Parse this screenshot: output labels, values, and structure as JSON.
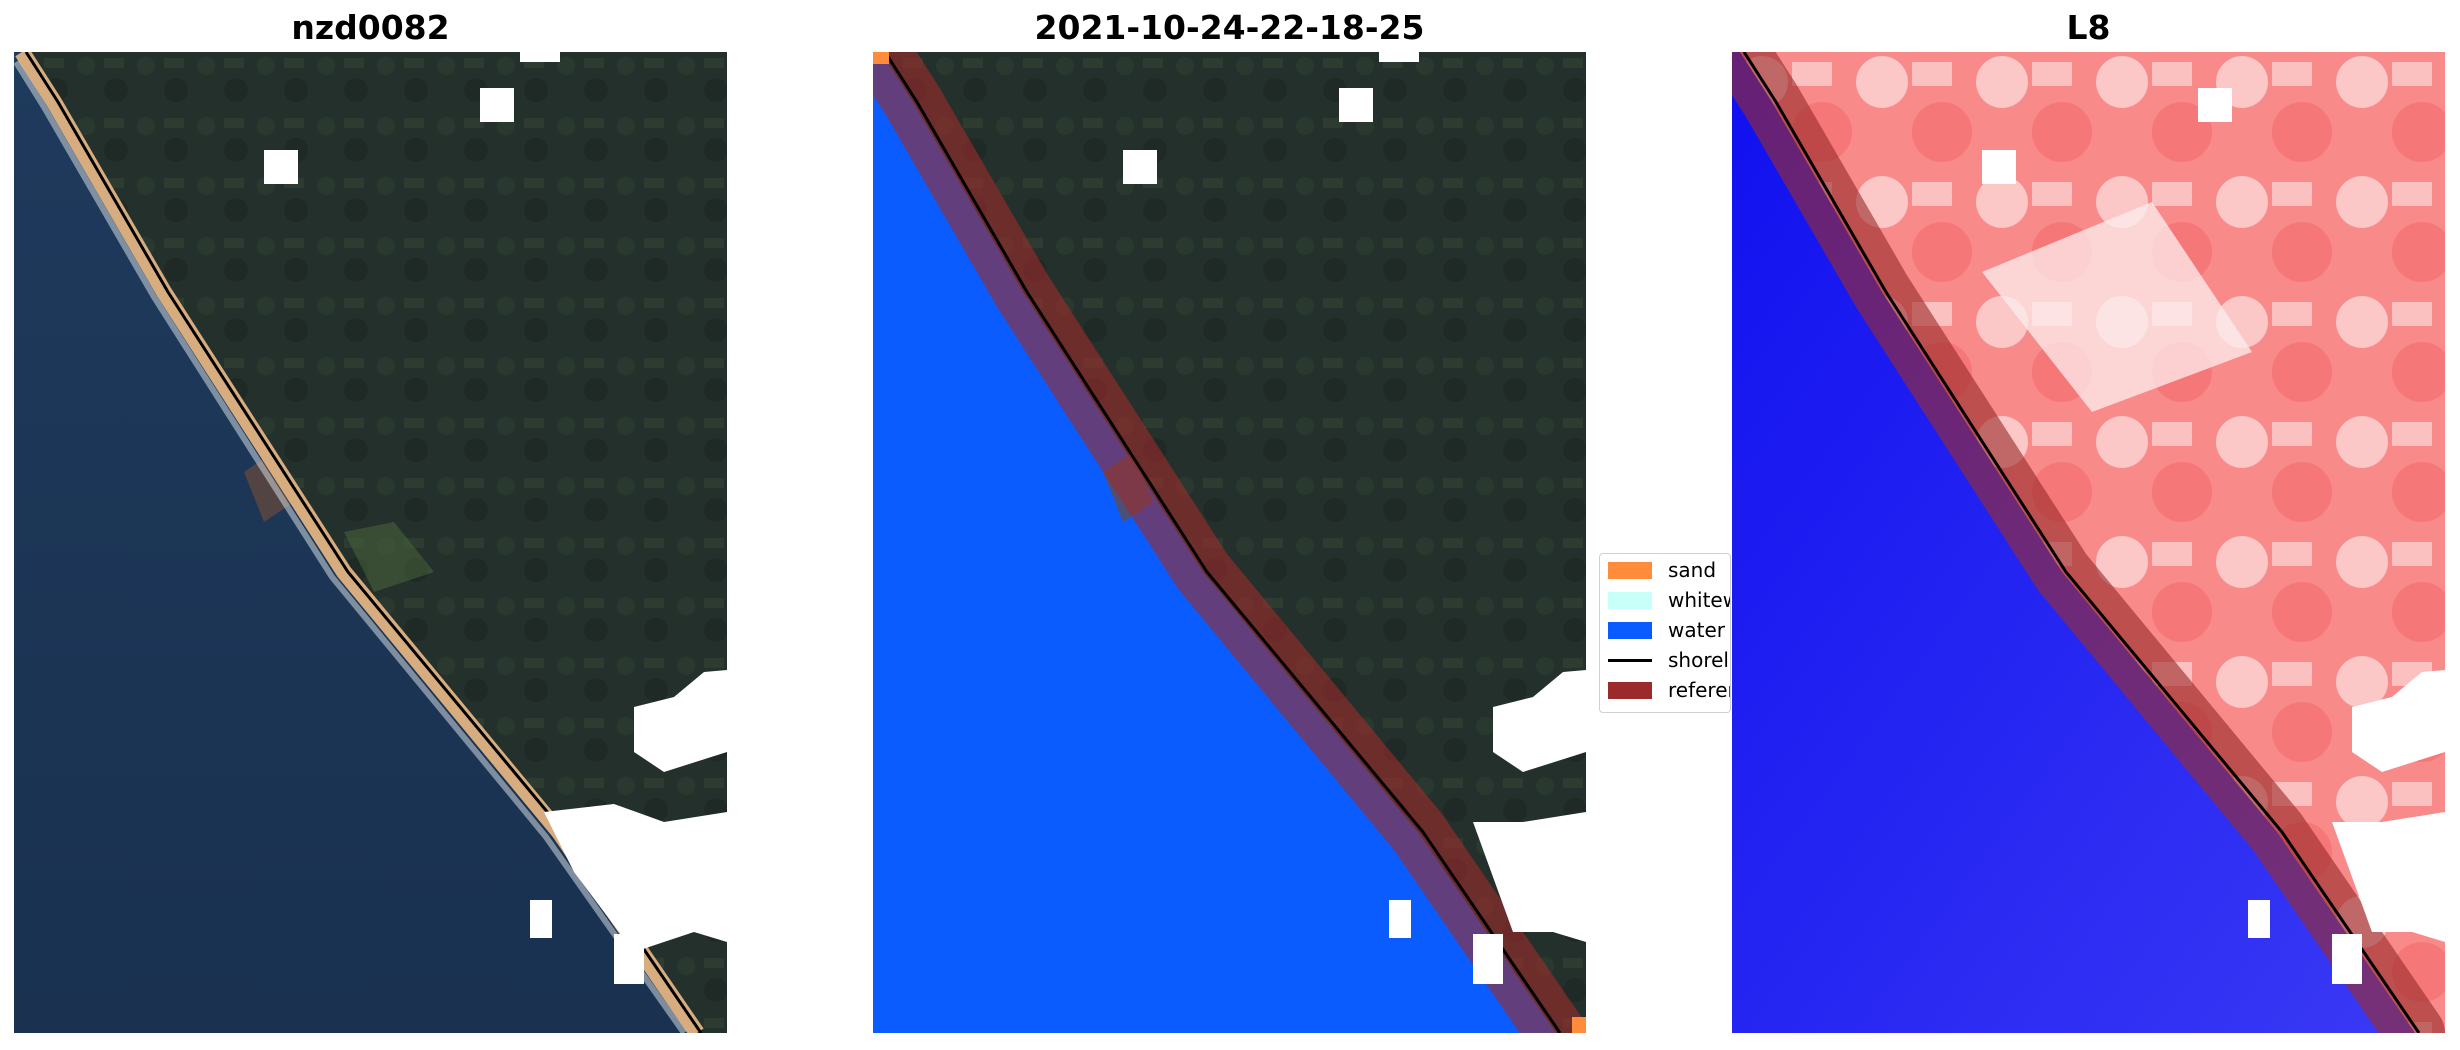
{
  "panels": [
    {
      "title": "nzd0082"
    },
    {
      "title": "2021-10-24-22-18-25"
    },
    {
      "title": "L8"
    }
  ],
  "legend": {
    "items": [
      {
        "label": "sand",
        "color": "#ff8c3a",
        "kind": "patch"
      },
      {
        "label": "whitew",
        "color": "#c8fff8",
        "kind": "patch"
      },
      {
        "label": "water",
        "color": "#0a5cff",
        "kind": "patch"
      },
      {
        "label": "shorel",
        "color": "#000000",
        "kind": "line"
      },
      {
        "label": "referen",
        "color": "#9b2b2b",
        "kind": "patch"
      }
    ]
  },
  "colors": {
    "ocean": "#1c3556",
    "land": "#26302a",
    "beach": "#d7ad7f",
    "water_class": "#0a5cff",
    "reference_buffer": "#9b2b2b",
    "cloud_mask": "#ffffff"
  }
}
